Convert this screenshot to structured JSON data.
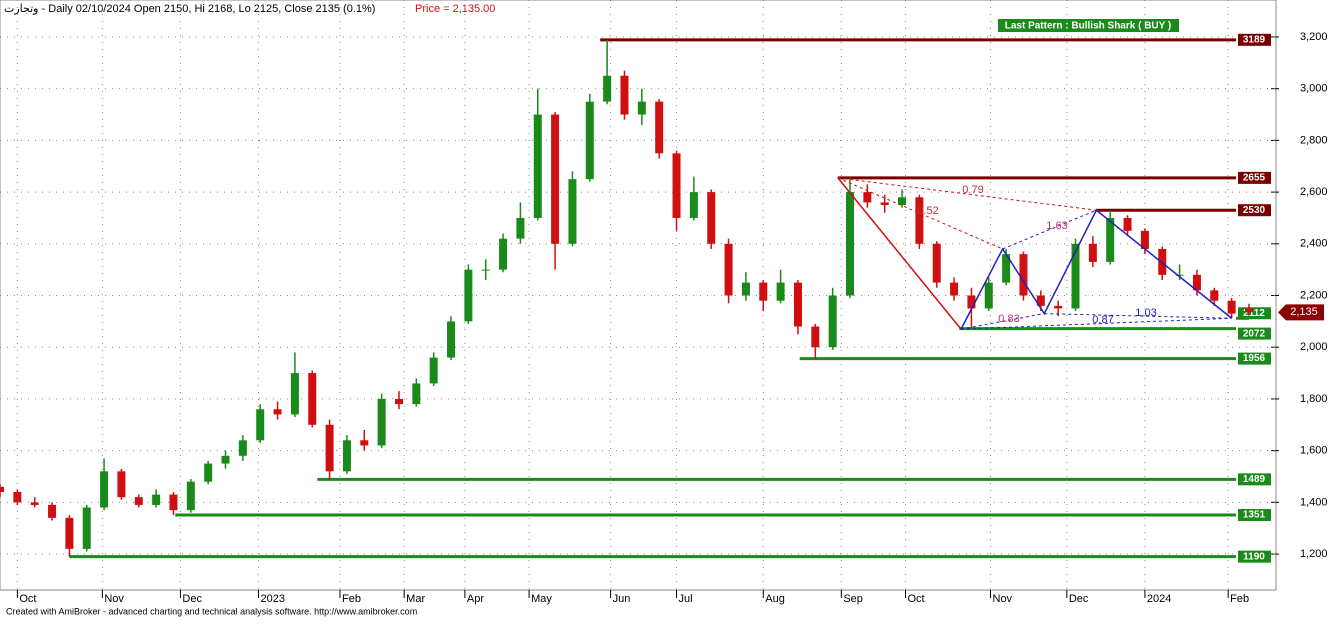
{
  "chart_data": {
    "type": "candlestick",
    "header": "وتجارت - Daily 02/10/2024 Open 2150, Hi 2168, Lo 2125, Close 2135 (0.1%)",
    "header_price": "Price = 2,135.00",
    "pattern_label": "Last Pattern : Bullish Shark ( BUY )",
    "footer": "Created with AmiBroker - advanced charting and technical analysis software. http://www.amibroker.com",
    "last_price": 2135,
    "last_price_label": "2,135",
    "up_color": "#1a8a1a",
    "down_color": "#d01010",
    "xlim": [
      0,
      73.5
    ],
    "ylim": [
      1061,
      3343
    ],
    "yticks": [
      {
        "value": 1200,
        "label": "1,200"
      },
      {
        "value": 1400,
        "label": "1,400"
      },
      {
        "value": 1600,
        "label": "1,600"
      },
      {
        "value": 1800,
        "label": "1,800"
      },
      {
        "value": 2000,
        "label": "2,000"
      },
      {
        "value": 2200,
        "label": "2,200"
      },
      {
        "value": 2400,
        "label": "2,400"
      },
      {
        "value": 2600,
        "label": "2,600"
      },
      {
        "value": 2800,
        "label": "2,800"
      },
      {
        "value": 3000,
        "label": "3,000"
      },
      {
        "value": 3200,
        "label": "3,200"
      }
    ],
    "xticks": [
      {
        "value": 1.0,
        "label": "Oct"
      },
      {
        "value": 5.9,
        "label": "Nov"
      },
      {
        "value": 10.4,
        "label": "Dec"
      },
      {
        "value": 14.9,
        "label": "2023"
      },
      {
        "value": 19.6,
        "label": "Feb"
      },
      {
        "value": 23.3,
        "label": "Mar"
      },
      {
        "value": 26.8,
        "label": "Apr"
      },
      {
        "value": 30.5,
        "label": "May"
      },
      {
        "value": 35.2,
        "label": "Jun"
      },
      {
        "value": 39.0,
        "label": "Jul"
      },
      {
        "value": 44.0,
        "label": "Aug"
      },
      {
        "value": 48.5,
        "label": "Sep"
      },
      {
        "value": 52.2,
        "label": "Oct"
      },
      {
        "value": 57.1,
        "label": "Nov"
      },
      {
        "value": 61.5,
        "label": "Dec"
      },
      {
        "value": 66.0,
        "label": "2024"
      },
      {
        "value": 70.8,
        "label": "Feb"
      }
    ],
    "ohlc": [
      [
        1460,
        1470,
        1420,
        1440
      ],
      [
        1440,
        1450,
        1390,
        1400
      ],
      [
        1400,
        1420,
        1380,
        1390
      ],
      [
        1390,
        1400,
        1330,
        1340
      ],
      [
        1340,
        1350,
        1190,
        1220
      ],
      [
        1220,
        1390,
        1210,
        1380
      ],
      [
        1380,
        1570,
        1370,
        1520
      ],
      [
        1520,
        1530,
        1410,
        1420
      ],
      [
        1420,
        1430,
        1380,
        1390
      ],
      [
        1390,
        1450,
        1380,
        1430
      ],
      [
        1430,
        1440,
        1351,
        1370
      ],
      [
        1370,
        1490,
        1360,
        1480
      ],
      [
        1480,
        1560,
        1470,
        1550
      ],
      [
        1550,
        1600,
        1530,
        1580
      ],
      [
        1580,
        1660,
        1560,
        1640
      ],
      [
        1640,
        1780,
        1630,
        1760
      ],
      [
        1760,
        1790,
        1720,
        1740
      ],
      [
        1740,
        1980,
        1730,
        1900
      ],
      [
        1900,
        1910,
        1690,
        1700
      ],
      [
        1700,
        1720,
        1489,
        1520
      ],
      [
        1520,
        1660,
        1510,
        1640
      ],
      [
        1640,
        1680,
        1600,
        1620
      ],
      [
        1620,
        1820,
        1610,
        1800
      ],
      [
        1800,
        1830,
        1760,
        1780
      ],
      [
        1780,
        1880,
        1770,
        1860
      ],
      [
        1860,
        1980,
        1850,
        1960
      ],
      [
        1960,
        2120,
        1950,
        2100
      ],
      [
        2100,
        2320,
        2090,
        2300
      ],
      [
        2300,
        2340,
        2260,
        2300
      ],
      [
        2300,
        2440,
        2290,
        2420
      ],
      [
        2420,
        2560,
        2400,
        2500
      ],
      [
        2500,
        3000,
        2490,
        2900
      ],
      [
        2900,
        2910,
        2300,
        2400
      ],
      [
        2400,
        2680,
        2390,
        2650
      ],
      [
        2650,
        2980,
        2640,
        2950
      ],
      [
        2950,
        3189,
        2940,
        3050
      ],
      [
        3050,
        3070,
        2880,
        2900
      ],
      [
        2900,
        3000,
        2860,
        2950
      ],
      [
        2950,
        2960,
        2730,
        2750
      ],
      [
        2750,
        2760,
        2450,
        2500
      ],
      [
        2500,
        2660,
        2490,
        2600
      ],
      [
        2600,
        2610,
        2380,
        2400
      ],
      [
        2400,
        2420,
        2170,
        2200
      ],
      [
        2200,
        2290,
        2180,
        2250
      ],
      [
        2250,
        2260,
        2140,
        2180
      ],
      [
        2180,
        2300,
        2170,
        2250
      ],
      [
        2250,
        2260,
        2050,
        2080
      ],
      [
        2080,
        2090,
        1956,
        2000
      ],
      [
        2000,
        2230,
        1990,
        2200
      ],
      [
        2200,
        2655,
        2190,
        2600
      ],
      [
        2600,
        2630,
        2540,
        2560
      ],
      [
        2560,
        2590,
        2520,
        2550
      ],
      [
        2550,
        2610,
        2540,
        2580
      ],
      [
        2580,
        2590,
        2380,
        2400
      ],
      [
        2400,
        2410,
        2230,
        2250
      ],
      [
        2250,
        2270,
        2180,
        2200
      ],
      [
        2200,
        2230,
        2072,
        2150
      ],
      [
        2150,
        2270,
        2140,
        2250
      ],
      [
        2250,
        2380,
        2240,
        2360
      ],
      [
        2360,
        2370,
        2180,
        2200
      ],
      [
        2200,
        2220,
        2140,
        2160
      ],
      [
        2160,
        2180,
        2120,
        2150
      ],
      [
        2150,
        2420,
        2140,
        2400
      ],
      [
        2400,
        2430,
        2310,
        2330
      ],
      [
        2330,
        2530,
        2320,
        2500
      ],
      [
        2500,
        2510,
        2430,
        2450
      ],
      [
        2450,
        2460,
        2360,
        2380
      ],
      [
        2380,
        2390,
        2260,
        2280
      ],
      [
        2280,
        2320,
        2260,
        2280
      ],
      [
        2280,
        2300,
        2200,
        2220
      ],
      [
        2220,
        2230,
        2160,
        2180
      ],
      [
        2180,
        2190,
        2112,
        2130
      ],
      [
        2150,
        2168,
        2125,
        2135
      ]
    ],
    "levels": [
      {
        "value": 3189,
        "start": 34.6,
        "color": "#7a0000"
      },
      {
        "value": 2655,
        "start": 48.3,
        "color": "#7a0000"
      },
      {
        "value": 2530,
        "start": 63.2,
        "color": "#7a0000"
      },
      {
        "value": 2112,
        "start": 72.0,
        "color": "#1a8a1a"
      },
      {
        "value": 2072,
        "start": 55.3,
        "color": "#1a8a1a"
      },
      {
        "value": 1956,
        "start": 46.1,
        "color": "#1a8a1a"
      },
      {
        "value": 1489,
        "start": 18.3,
        "color": "#1a8a1a"
      },
      {
        "value": 1351,
        "start": 10.1,
        "color": "#1a8a1a"
      },
      {
        "value": 1190,
        "start": 4.0,
        "color": "#1a8a1a"
      }
    ],
    "pattern_x": [
      48.3,
      55.4,
      57.8,
      60.2,
      63.2,
      71.0
    ],
    "pattern_y": [
      2655,
      2070,
      2380,
      2130,
      2530,
      2112
    ],
    "ratios": [
      "0.79",
      "0.52",
      "1.63",
      "0.83",
      "0.87",
      "1.03"
    ]
  }
}
